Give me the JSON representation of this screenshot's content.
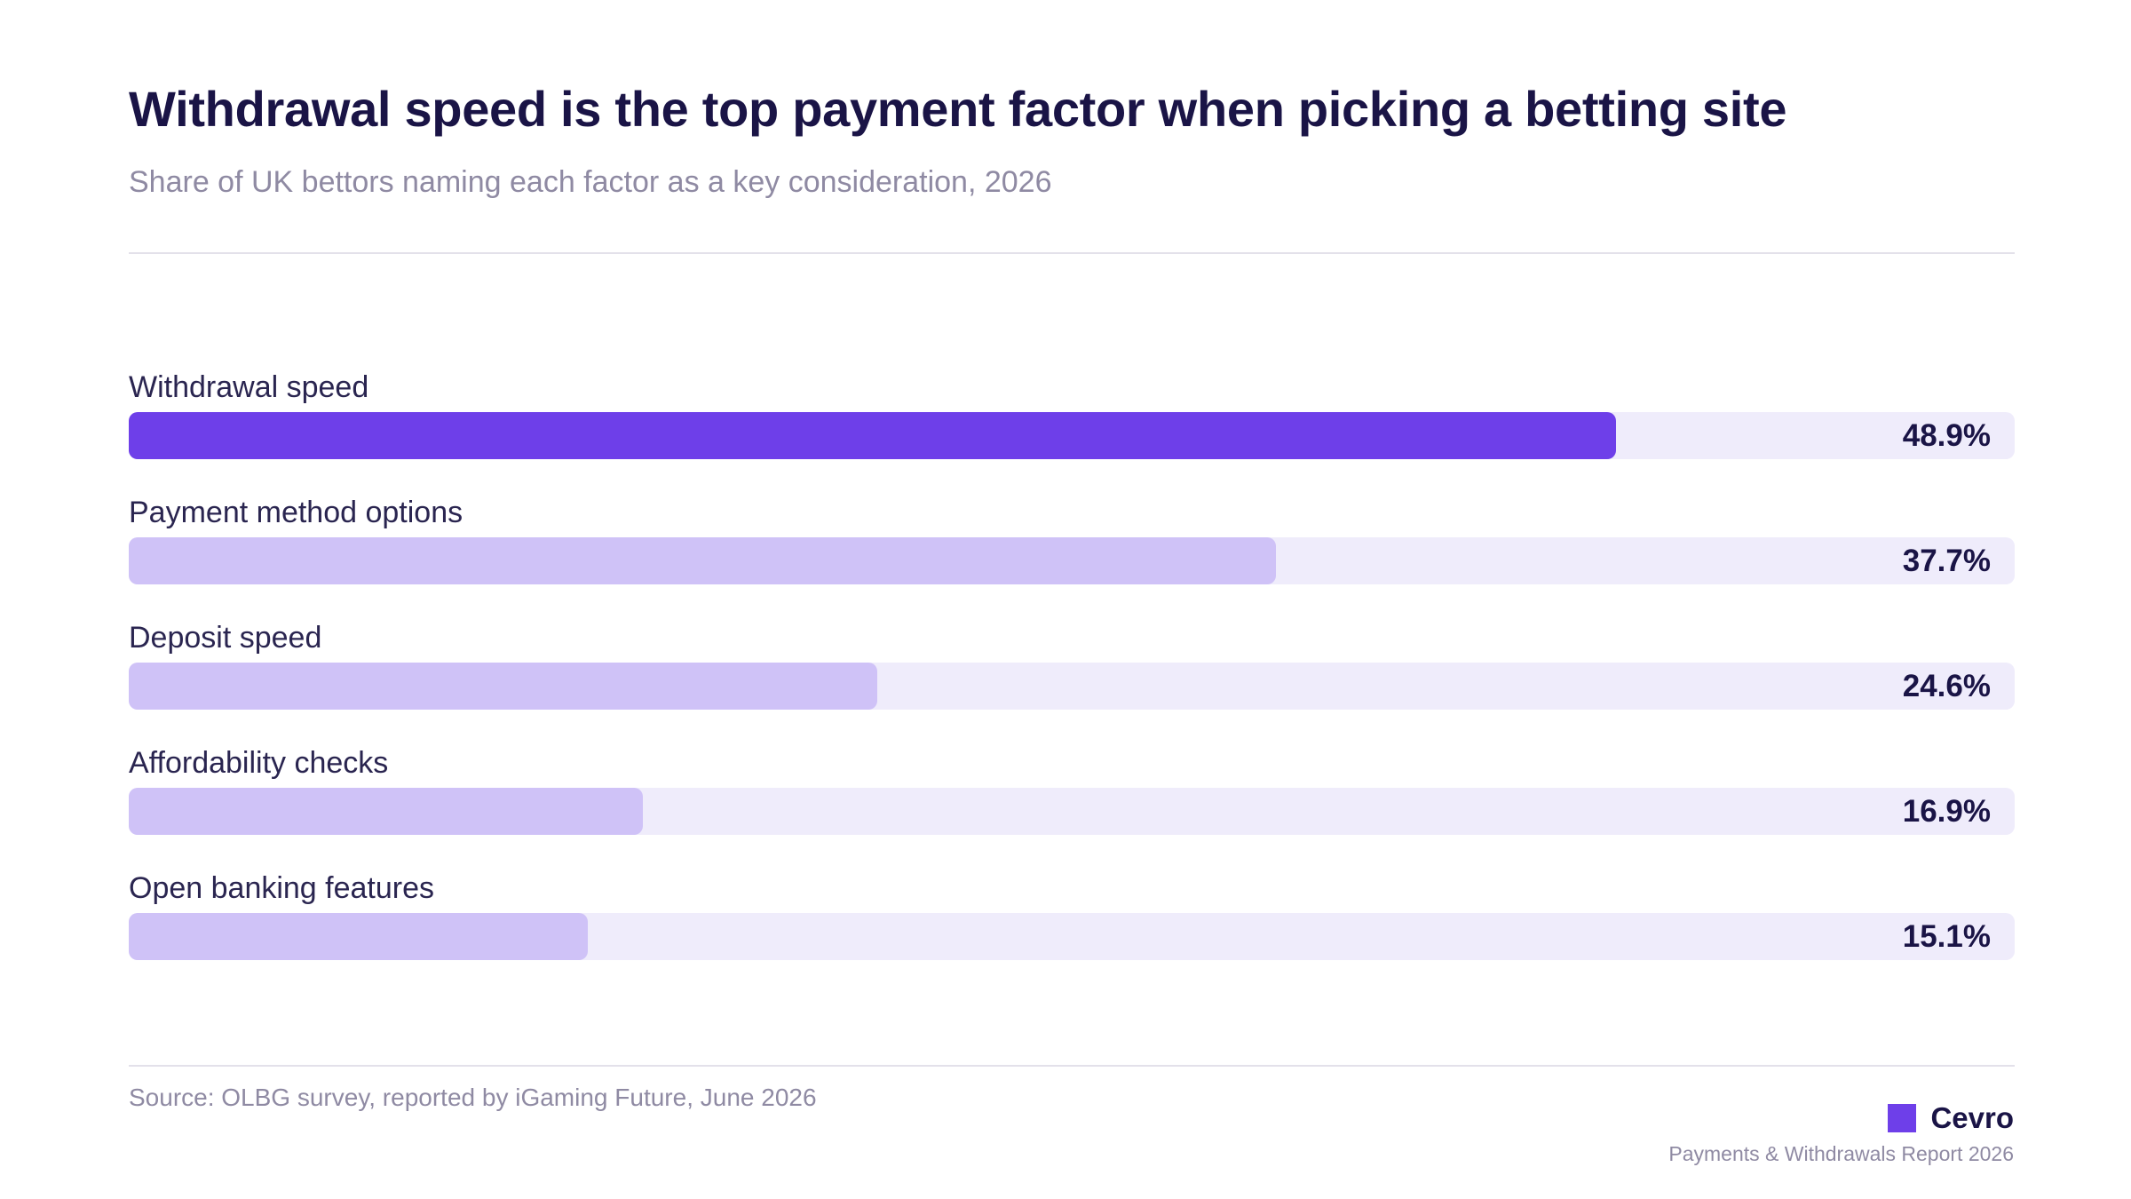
{
  "title": "Withdrawal speed is the top payment factor when picking a betting site",
  "subtitle": "Share of UK bettors naming each factor as a key consideration, 2026",
  "source": "Source: OLBG survey, reported by iGaming Future, June 2026",
  "brand": "Cevro",
  "report": "Payments & Withdrawals Report 2026",
  "colors": {
    "highlight": "#6e3fe9",
    "bar": "#cfc2f7",
    "track": "#efecfb",
    "text": "#1a1446",
    "muted": "#8f8aa3"
  },
  "chart_data": {
    "type": "bar",
    "orientation": "horizontal",
    "categories": [
      "Withdrawal speed",
      "Payment method options",
      "Deposit speed",
      "Affordability checks",
      "Open banking features"
    ],
    "values": [
      48.9,
      37.7,
      24.6,
      16.9,
      15.1
    ],
    "value_labels": [
      "48.9%",
      "37.7%",
      "24.6%",
      "16.9%",
      "15.1%"
    ],
    "xlim": [
      0,
      62
    ],
    "grid": false,
    "legend": "none",
    "highlighted_category": "Withdrawal speed"
  }
}
